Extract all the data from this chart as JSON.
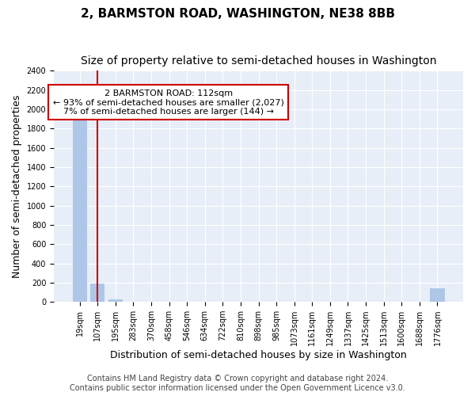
{
  "title": "2, BARMSTON ROAD, WASHINGTON, NE38 8BB",
  "subtitle": "Size of property relative to semi-detached houses in Washington",
  "xlabel": "Distribution of semi-detached houses by size in Washington",
  "ylabel": "Number of semi-detached properties",
  "footer_line1": "Contains HM Land Registry data © Crown copyright and database right 2024.",
  "footer_line2": "Contains public sector information licensed under the Open Government Licence v3.0.",
  "annotation_title": "2 BARMSTON ROAD: 112sqm",
  "annotation_line1": "← 93% of semi-detached houses are smaller (2,027)",
  "annotation_line2": "7% of semi-detached houses are larger (144) →",
  "categories": [
    "19sqm",
    "107sqm",
    "195sqm",
    "283sqm",
    "370sqm",
    "458sqm",
    "546sqm",
    "634sqm",
    "722sqm",
    "810sqm",
    "898sqm",
    "985sqm",
    "1073sqm",
    "1161sqm",
    "1249sqm",
    "1337sqm",
    "1425sqm",
    "1513sqm",
    "1600sqm",
    "1688sqm",
    "1776sqm"
  ],
  "values": [
    2027,
    193,
    30,
    3,
    0,
    0,
    0,
    0,
    0,
    0,
    0,
    0,
    0,
    0,
    0,
    0,
    0,
    0,
    0,
    0,
    144
  ],
  "bar_color": "#aec6e8",
  "redline_index": 1,
  "ylim": [
    0,
    2400
  ],
  "yticks": [
    0,
    200,
    400,
    600,
    800,
    1000,
    1200,
    1400,
    1600,
    1800,
    2000,
    2200,
    2400
  ],
  "bg_color": "#e8eef7",
  "grid_color": "#ffffff",
  "annotation_box_color": "#ffffff",
  "annotation_box_edge": "#cc0000",
  "title_fontsize": 11,
  "subtitle_fontsize": 10,
  "axis_label_fontsize": 9,
  "tick_fontsize": 7,
  "annotation_fontsize": 8,
  "footer_fontsize": 7
}
